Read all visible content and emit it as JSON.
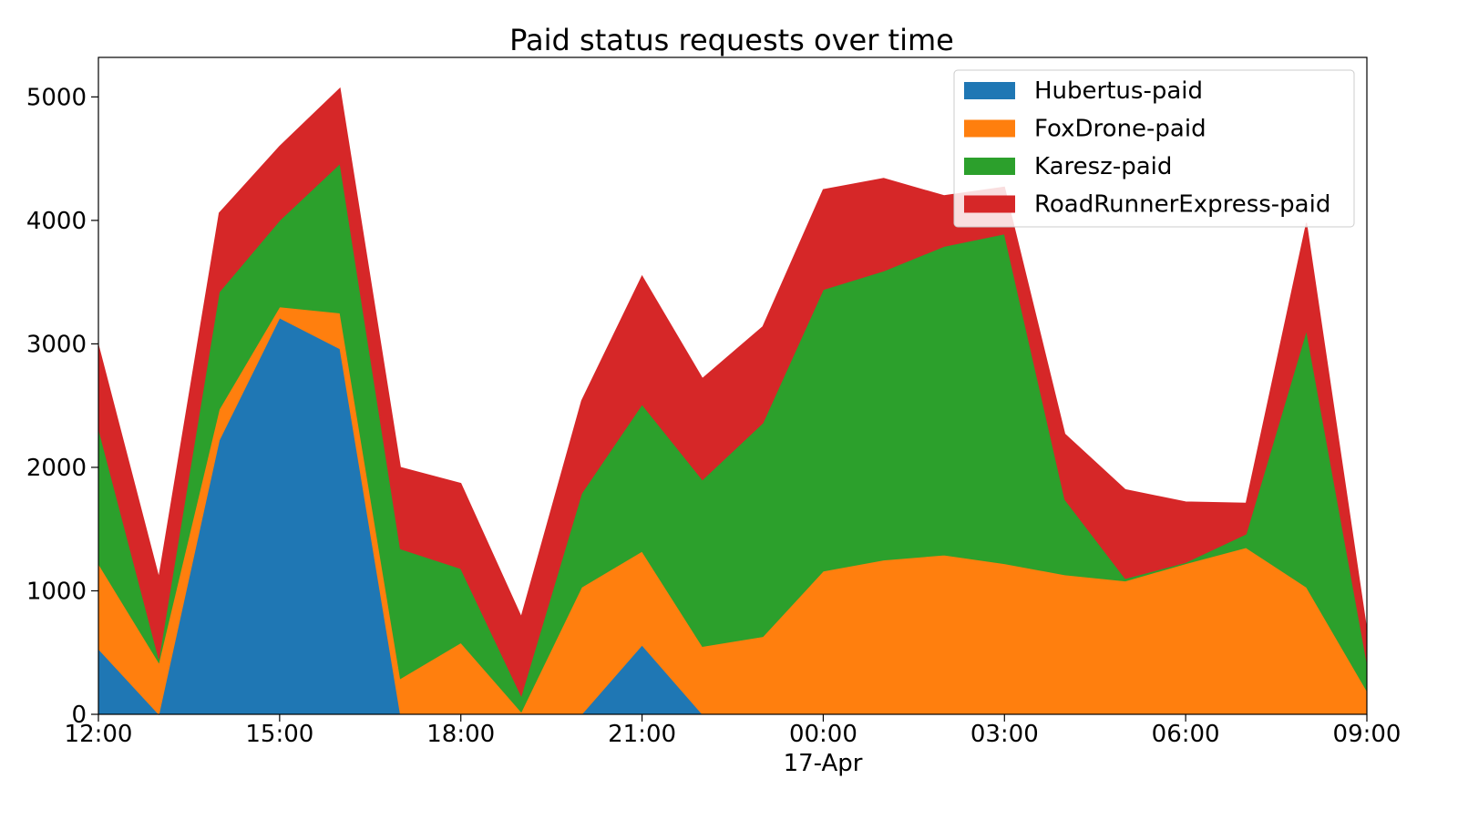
{
  "chart_data": {
    "type": "area",
    "stacked": true,
    "title": "Paid status requests over time",
    "xlabel": "",
    "ylabel": "",
    "x_tick_labels": [
      "12:00",
      "15:00",
      "18:00",
      "21:00",
      "00:00",
      "03:00",
      "06:00",
      "09:00"
    ],
    "x_sub_label": "17-Apr",
    "x": [
      "16-Apr 12:00",
      "16-Apr 13:00",
      "16-Apr 14:00",
      "16-Apr 15:00",
      "16-Apr 16:00",
      "16-Apr 17:00",
      "16-Apr 18:00",
      "16-Apr 19:00",
      "16-Apr 20:00",
      "16-Apr 21:00",
      "16-Apr 22:00",
      "16-Apr 23:00",
      "17-Apr 00:00",
      "17-Apr 01:00",
      "17-Apr 02:00",
      "17-Apr 03:00",
      "17-Apr 04:00",
      "17-Apr 05:00",
      "17-Apr 06:00",
      "17-Apr 07:00",
      "17-Apr 08:00",
      "17-Apr 09:00"
    ],
    "xlim": [
      "16-Apr 12:00",
      "17-Apr 09:00"
    ],
    "ylim": [
      0,
      5320
    ],
    "y_ticks": [
      0,
      1000,
      2000,
      3000,
      4000,
      5000
    ],
    "grid": false,
    "legend_position": "top-right",
    "series": [
      {
        "name": "Hubertus-paid",
        "color": "#1f77b4",
        "values": [
          530,
          0,
          2220,
          3210,
          2960,
          0,
          0,
          0,
          0,
          560,
          0,
          0,
          0,
          0,
          0,
          0,
          0,
          0,
          0,
          0,
          0,
          0
        ]
      },
      {
        "name": "FoxDrone-paid",
        "color": "#ff7f0e",
        "values": [
          690,
          420,
          250,
          90,
          290,
          290,
          580,
          20,
          1030,
          760,
          550,
          630,
          1160,
          1250,
          1290,
          1220,
          1130,
          1080,
          1220,
          1350,
          1030,
          190
        ]
      },
      {
        "name": "Karesz-paid",
        "color": "#2ca02c",
        "values": [
          1100,
          30,
          950,
          700,
          1210,
          1050,
          600,
          130,
          760,
          1190,
          1350,
          1730,
          2280,
          2340,
          2500,
          2670,
          610,
          20,
          10,
          110,
          2080,
          230
        ]
      },
      {
        "name": "RoadRunnerExpress-paid",
        "color": "#d62728",
        "values": [
          670,
          660,
          640,
          600,
          610,
          660,
          690,
          640,
          750,
          1040,
          820,
          780,
          810,
          750,
          410,
          380,
          530,
          720,
          490,
          250,
          870,
          260
        ]
      }
    ]
  }
}
